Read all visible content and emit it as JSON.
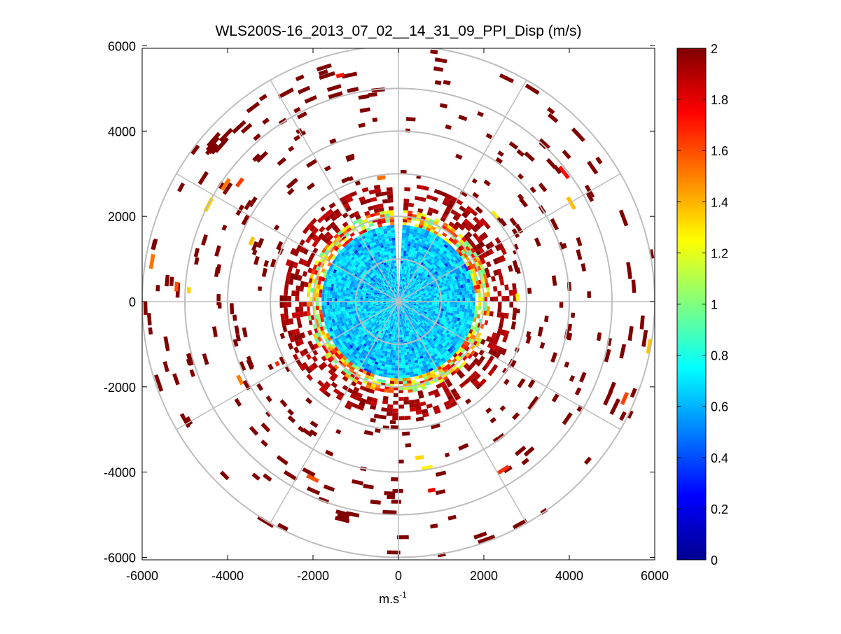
{
  "figure": {
    "title": "WLS200S-16_2013_07_02__14_31_09_PPI_Disp (m/s)",
    "xlabel_base": "m.s",
    "xlabel_exp": "-1"
  },
  "chart_data": {
    "type": "heatmap",
    "projection": "polar (PPI)",
    "title": "WLS200S-16_2013_07_02__14_31_09_PPI_Disp (m/s)",
    "xlabel": "m.s-1",
    "ylabel": "",
    "xlim": [
      -6000,
      6000
    ],
    "ylim": [
      -6000,
      6000
    ],
    "x_ticks": [
      -6000,
      -4000,
      -2000,
      0,
      2000,
      4000,
      6000
    ],
    "y_ticks": [
      6000,
      4000,
      2000,
      0,
      -2000,
      -4000,
      -6000
    ],
    "grid": true,
    "polar_grid": {
      "circle_radii": [
        1000,
        2000,
        3000,
        4000,
        5000,
        6000
      ],
      "spoke_angles_deg": [
        0,
        30,
        60,
        90,
        120,
        150,
        180,
        210,
        240,
        270,
        300,
        330
      ]
    },
    "colorbar": {
      "colormap": "jet",
      "range": [
        0,
        2
      ],
      "ticks": [
        "0",
        "0.2",
        "0.4",
        "0.6",
        "0.8",
        "1",
        "1.2",
        "1.4",
        "1.6",
        "1.8",
        "2"
      ]
    },
    "regions": [
      {
        "r_from": 0,
        "r_to": 1800,
        "value_range": [
          0.5,
          0.8
        ]
      },
      {
        "r_from": 1800,
        "r_to": 2150,
        "value_range": [
          0.9,
          1.9
        ]
      },
      {
        "r_from": 2150,
        "r_to": 6000,
        "value_range": [
          1.9,
          2.0
        ]
      }
    ],
    "missing_sector_deg": [
      -4,
      2
    ]
  }
}
